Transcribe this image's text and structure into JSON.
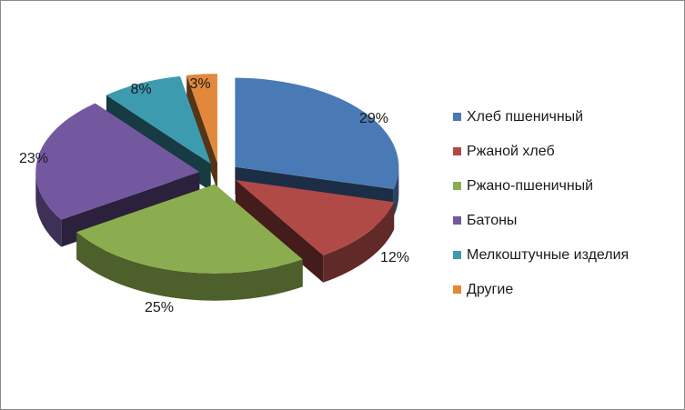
{
  "chart_data": {
    "type": "pie",
    "title": "",
    "categories": [
      "Хлеб пшеничный",
      "Ржаной хлеб",
      "Ржано-пшеничный",
      "Батоны",
      "Мелкоштучные изделия",
      "Другие"
    ],
    "values": [
      29,
      12,
      25,
      23,
      8,
      3
    ],
    "labels": [
      "29%",
      "12%",
      "25%",
      "23%",
      "8%",
      "3%"
    ],
    "colors": [
      "#4a7ab5",
      "#b04a47",
      "#8cad4f",
      "#7358a0",
      "#3d9bb0",
      "#e2883a"
    ],
    "legend_position": "right",
    "exploded": true,
    "three_d": true
  }
}
